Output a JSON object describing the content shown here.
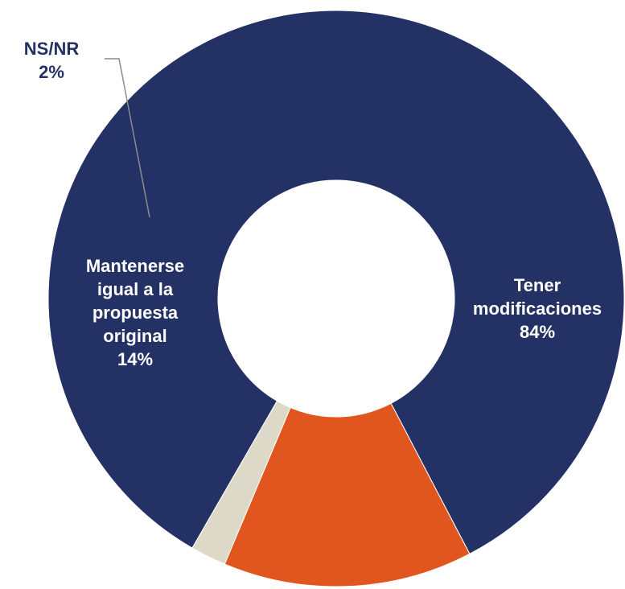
{
  "chart_data": {
    "type": "pie",
    "variant": "donut",
    "categories": [
      "Tener modificaciones",
      "Mantenerse igual a la propuesta original",
      "NS/NR"
    ],
    "values": [
      84,
      14,
      2
    ],
    "unit": "%",
    "colors": [
      "#243165",
      "#E1561F",
      "#DDD9C8"
    ],
    "labels": [
      {
        "lines": [
          "Tener",
          "modificaciones"
        ],
        "value_text": "84%",
        "color": "#FFFFFF"
      },
      {
        "lines": [
          "Mantenerse",
          "igual a la",
          "propuesta",
          "original"
        ],
        "value_text": "14%",
        "color": "#FFFFFF"
      },
      {
        "lines": [
          "NS/NR"
        ],
        "value_text": "2%",
        "color": "#243165"
      }
    ]
  }
}
